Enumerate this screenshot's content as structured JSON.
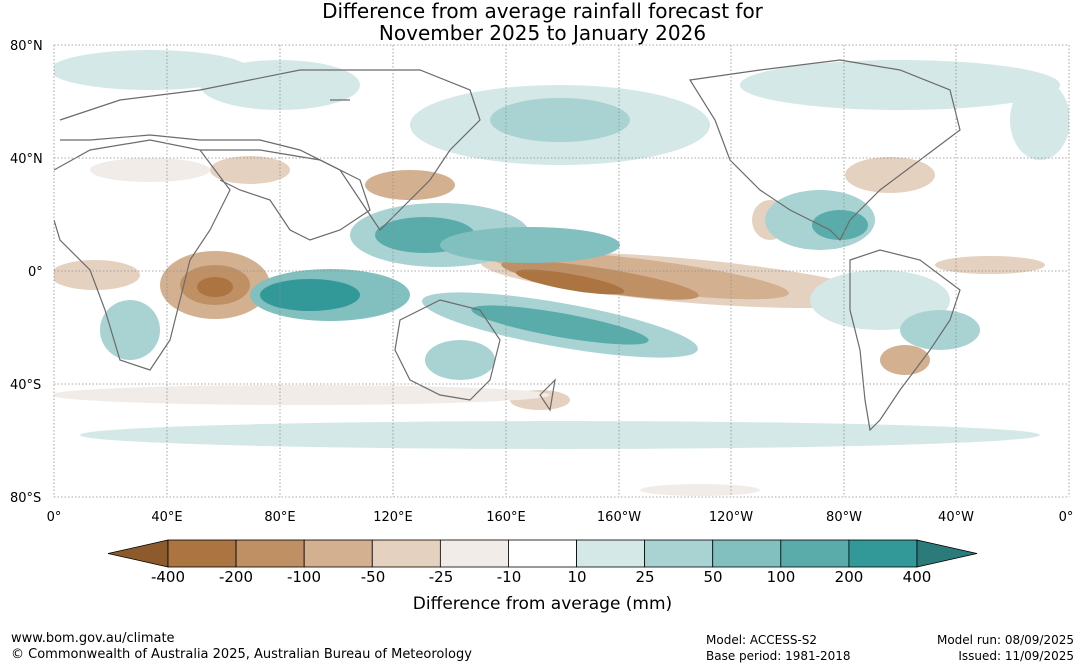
{
  "title_line1": "Difference from average rainfall forecast for",
  "title_line2": "November 2025 to January 2026",
  "lat_labels": [
    "80°N",
    "40°N",
    "0°",
    "40°S",
    "80°S"
  ],
  "lon_labels": [
    "0°",
    "40°E",
    "80°E",
    "120°E",
    "160°E",
    "160°W",
    "120°W",
    "80°W",
    "40°W",
    "0°"
  ],
  "colorbar": {
    "title": "Difference from average (mm)",
    "ticks": [
      "-400",
      "-200",
      "-100",
      "-50",
      "-25",
      "-10",
      "10",
      "25",
      "50",
      "100",
      "200",
      "400"
    ],
    "colors": [
      "#8c5a2b",
      "#ab7441",
      "#c09065",
      "#d3b08f",
      "#e5d1bf",
      "#f2ece8",
      "#ffffff",
      "#d4e8e7",
      "#a9d3d2",
      "#82bfbf",
      "#5aacab",
      "#329998",
      "#2b7b7b"
    ]
  },
  "footer": {
    "website": "www.bom.gov.au/climate",
    "copyright": "© Commonwealth of Australia 2025, Australian Bureau of Meteorology",
    "model": "Model: ACCESS-S2",
    "base_period": "Base period: 1981-2018",
    "model_run": "Model run: 08/09/2025",
    "issued": "Issued: 11/09/2025"
  }
}
